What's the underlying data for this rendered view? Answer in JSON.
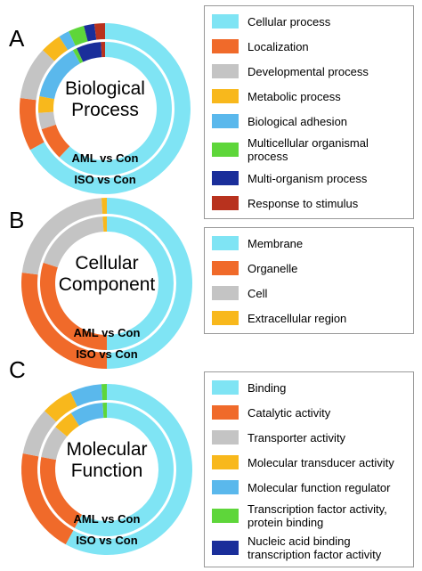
{
  "chart_data": [
    {
      "type": "donut",
      "panel": "A",
      "title": "Biological Process",
      "categories": [
        "Cellular process",
        "Localization",
        "Developmental process",
        "Metabolic process",
        "Biological adhesion",
        "Multicellular organismal process",
        "Multi-organism process",
        "Response to stimulus"
      ],
      "colors": [
        "#7fe4f4",
        "#f06a2a",
        "#c4c4c4",
        "#f8b81c",
        "#5ab8ec",
        "#5ed63a",
        "#1a2e9a",
        "#b8321e"
      ],
      "series": [
        {
          "name": "AML vs Con",
          "values": [
            62,
            8,
            4,
            4,
            14,
            1,
            6,
            1
          ]
        },
        {
          "name": "ISO vs Con",
          "values": [
            67,
            10,
            10,
            4,
            2,
            3,
            2,
            2
          ]
        }
      ]
    },
    {
      "type": "donut",
      "panel": "B",
      "title": "Cellular Component",
      "categories": [
        "Membrane",
        "Organelle",
        "Cell",
        "Extracellular region"
      ],
      "colors": [
        "#7fe4f4",
        "#f06a2a",
        "#c4c4c4",
        "#f8b81c"
      ],
      "series": [
        {
          "name": "AML vs Con",
          "values": [
            50,
            30,
            19,
            1
          ]
        },
        {
          "name": "ISO vs Con",
          "values": [
            50,
            27,
            22,
            1
          ]
        }
      ]
    },
    {
      "type": "donut",
      "panel": "C",
      "title": "Molecular Function",
      "categories": [
        "Binding",
        "Catalytic activity",
        "Transporter activity",
        "Molecular transducer activity",
        "Molecular function regulator",
        "Transcription factor activity, protein binding",
        "Nucleic acid binding transcription factor activity"
      ],
      "colors": [
        "#7fe4f4",
        "#f06a2a",
        "#c4c4c4",
        "#f8b81c",
        "#5ab8ec",
        "#5ed63a",
        "#1a2e9a"
      ],
      "series": [
        {
          "name": "AML vs Con",
          "values": [
            58,
            20,
            8,
            5,
            8,
            1,
            0
          ]
        },
        {
          "name": "ISO vs Con",
          "values": [
            58,
            20,
            9,
            6,
            6,
            1,
            0
          ]
        }
      ]
    }
  ]
}
